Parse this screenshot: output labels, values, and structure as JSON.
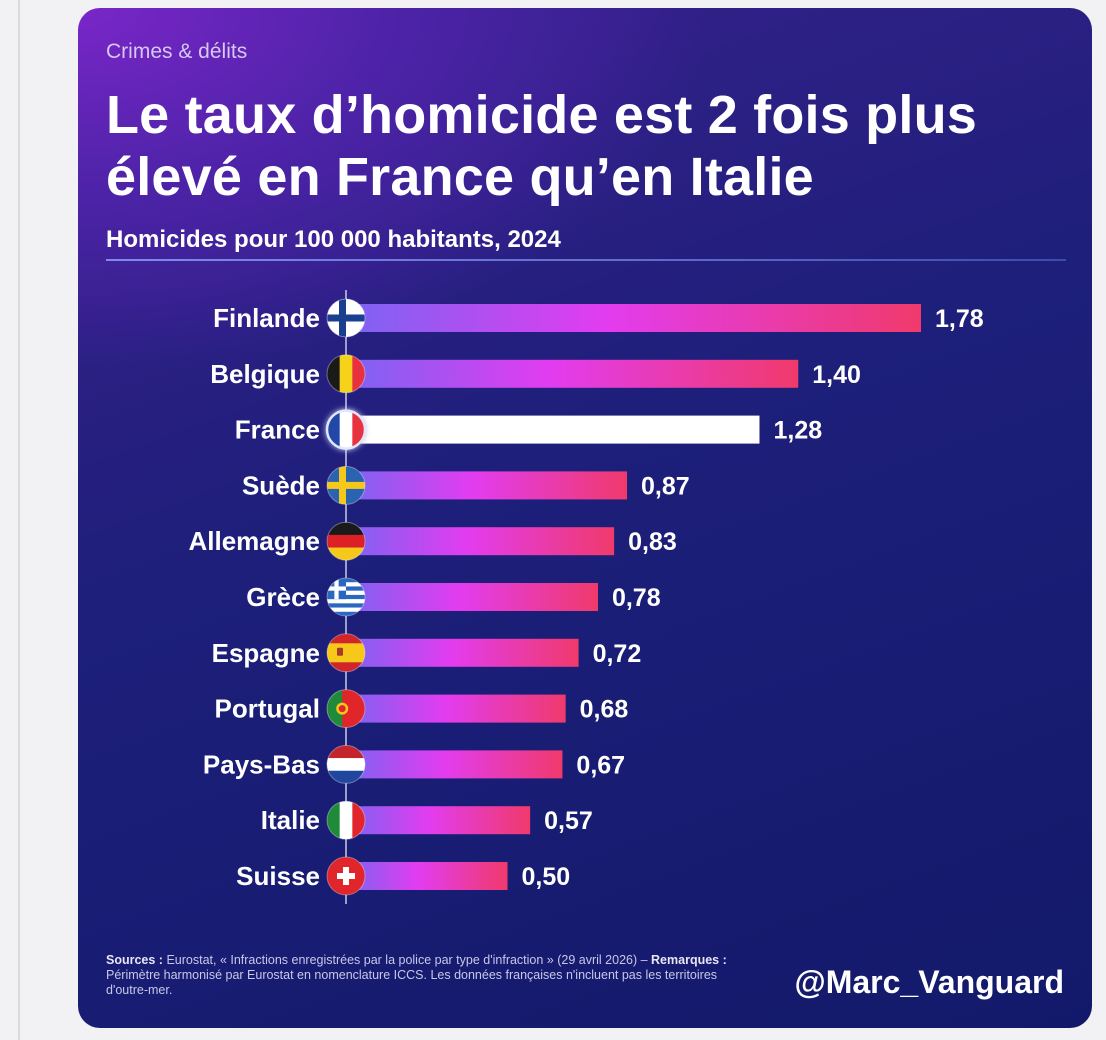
{
  "kicker": "Crimes & délits",
  "title_line1": "Le taux d’homicide est 2 fois plus",
  "title_line2": "élevé en France qu’en Italie",
  "chart_data": {
    "type": "bar",
    "orientation": "horizontal",
    "title": "Le taux d’homicide est 2 fois plus élevé en France qu’en Italie",
    "subtitle": "Homicides pour 100 000 habitants, 2024",
    "categories": [
      "Finlande",
      "Belgique",
      "France",
      "Suède",
      "Allemagne",
      "Grèce",
      "Espagne",
      "Portugal",
      "Pays-Bas",
      "Italie",
      "Suisse"
    ],
    "values": [
      1.78,
      1.4,
      1.28,
      0.87,
      0.83,
      0.78,
      0.72,
      0.68,
      0.67,
      0.57,
      0.5
    ],
    "value_labels": [
      "1,78",
      "1,40",
      "1,28",
      "0,87",
      "0,83",
      "0,78",
      "0,72",
      "0,68",
      "0,67",
      "0,57",
      "0,50"
    ],
    "flags": [
      "flag-finland-icon",
      "flag-belgium-icon",
      "flag-france-icon",
      "flag-sweden-icon",
      "flag-germany-icon",
      "flag-greece-icon",
      "flag-spain-icon",
      "flag-portugal-icon",
      "flag-netherlands-icon",
      "flag-italy-icon",
      "flag-switzerland-icon"
    ],
    "highlight": "France",
    "xlim": [
      0,
      1.78
    ],
    "xlabel": "",
    "ylabel": ""
  },
  "colors": {
    "bar_start": "#7b64f2",
    "bar_mid": "#e23cf0",
    "bar_end": "#f03a6c",
    "highlight_bar": "#ffffff",
    "text": "#ffffff"
  },
  "footer": {
    "sources_label": "Sources :",
    "sources_text": " Eurostat, « Infractions enregistrées par la police par type d'infraction » (29 avril 2026) – ",
    "remarks_label": "Remarques :",
    "remarks_text": " Périmètre harmonisé par Eurostat en nomenclature ICCS. Les données françaises n'incluent pas les territoires d'outre-mer.",
    "handle": "@Marc_Vanguard"
  }
}
